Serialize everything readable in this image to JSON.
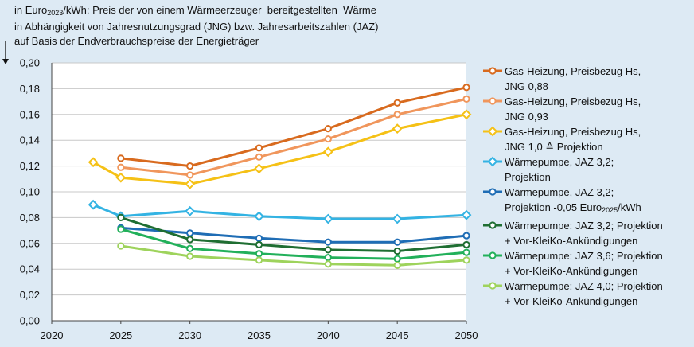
{
  "chart_data": {
    "type": "line",
    "title_lines": [
      "in Euro2023/kWh: Preis der von einem Wärmeerzeuger  bereitgestellten  Wärme",
      "in Abhängigkeit von Jahresnutzungsgrad  (JNG) bzw. Jahresarbeitszahlen  (JAZ)",
      "auf Basis der Endverbrauchspreise  der Energieträger"
    ],
    "xlim": [
      2020,
      2050
    ],
    "ylim": [
      0,
      0.2
    ],
    "xticks": [
      "2020",
      "2025",
      "2030",
      "2035",
      "2040",
      "2045",
      "2050"
    ],
    "yticks": [
      "0,00",
      "0,02",
      "0,04",
      "0,06",
      "0,08",
      "0,10",
      "0,12",
      "0,14",
      "0,16",
      "0,18",
      "0,20"
    ],
    "grid": "horizontal",
    "legend_position": "right",
    "series": [
      {
        "name": "Gas-Heizung, Preisbezug Hs, JNG 0,88",
        "label_lines": [
          "Gas-Heizung, Preisbezug Hs,",
          "JNG 0,88"
        ],
        "color": "#d86a1e",
        "marker": "circle",
        "x": [
          2025,
          2030,
          2035,
          2040,
          2045,
          2050
        ],
        "y": [
          0.126,
          0.12,
          0.134,
          0.149,
          0.169,
          0.181
        ]
      },
      {
        "name": "Gas-Heizung, Preisbezug Hs, JNG 0,93",
        "label_lines": [
          "Gas-Heizung, Preisbezug Hs,",
          "JNG 0,93"
        ],
        "color": "#f0965c",
        "marker": "circle",
        "x": [
          2025,
          2030,
          2035,
          2040,
          2045,
          2050
        ],
        "y": [
          0.119,
          0.113,
          0.127,
          0.141,
          0.16,
          0.172
        ]
      },
      {
        "name": "Gas-Heizung, Preisbezug Hs, JNG 1,0 ≙ Projektion",
        "label_lines": [
          "Gas-Heizung,  Preisbezug Hs,",
          "JNG 1,0 ≙ Projektion"
        ],
        "color": "#f5c116",
        "marker": "diamond",
        "x": [
          2023,
          2025,
          2030,
          2035,
          2040,
          2045,
          2050
        ],
        "y": [
          0.123,
          0.111,
          0.106,
          0.118,
          0.131,
          0.149,
          0.16
        ]
      },
      {
        "name": "Wärmepumpe, JAZ 3,2; Projektion",
        "label_lines": [
          "Wärmepumpe, JAZ 3,2;",
          "Projektion"
        ],
        "color": "#33b3e3",
        "marker": "diamond",
        "x": [
          2023,
          2025,
          2030,
          2035,
          2040,
          2045,
          2050
        ],
        "y": [
          0.09,
          0.081,
          0.085,
          0.081,
          0.079,
          0.079,
          0.082
        ]
      },
      {
        "name": "Wärmepumpe, JAZ 3,2; Projektion -0,05 Euro2025/kWh",
        "label_lines": [
          "Wärmepumpe,  JAZ 3,2;",
          "Projektion -0,05 Euro2025/kWh"
        ],
        "color": "#1f6db5",
        "marker": "circle",
        "x": [
          2025,
          2030,
          2035,
          2040,
          2045,
          2050
        ],
        "y": [
          0.072,
          0.068,
          0.064,
          0.061,
          0.061,
          0.066
        ]
      },
      {
        "name": "Wärmepumpe: JAZ 3,2; Projektion + Vor-KleiKo-Ankündigungen",
        "label_lines": [
          "Wärmepumpe: JAZ 3,2; Projektion",
          "+ Vor-KleiKo-Ankündigungen"
        ],
        "color": "#1f6e32",
        "marker": "circle",
        "x": [
          2025,
          2030,
          2035,
          2040,
          2045,
          2050
        ],
        "y": [
          0.08,
          0.063,
          0.059,
          0.055,
          0.054,
          0.059
        ]
      },
      {
        "name": "Wärmepumpe: JAZ 3,6; Projektion + Vor-KleiKo-Ankündigungen",
        "label_lines": [
          "Wärmepumpe: JAZ 3,6; Projektion",
          "+ Vor-KleiKo-Ankündigungen"
        ],
        "color": "#22b05a",
        "marker": "circle",
        "x": [
          2025,
          2030,
          2035,
          2040,
          2045,
          2050
        ],
        "y": [
          0.071,
          0.056,
          0.052,
          0.049,
          0.048,
          0.053
        ]
      },
      {
        "name": "Wärmepumpe: JAZ 4,0; Projektion + Vor-KleiKo-Ankündigungen",
        "label_lines": [
          "Wärmepumpe: JAZ 4,0; Projektion",
          "+ Vor-KleiKo-Ankündigungen"
        ],
        "color": "#9ed35c",
        "marker": "circle",
        "x": [
          2025,
          2030,
          2035,
          2040,
          2045,
          2050
        ],
        "y": [
          0.058,
          0.05,
          0.047,
          0.044,
          0.043,
          0.047
        ]
      }
    ]
  }
}
